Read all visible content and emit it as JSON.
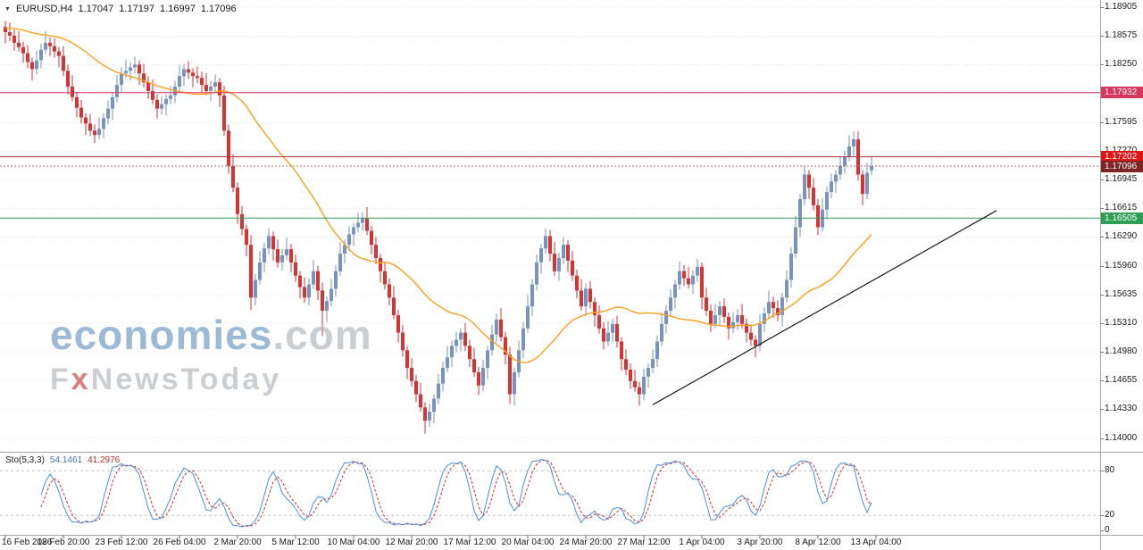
{
  "header": {
    "collapse_icon": "▼",
    "symbol": "EURUSD,H4",
    "open": "1.17047",
    "high": "1.17197",
    "low": "1.16997",
    "close": "1.17096"
  },
  "watermark": {
    "brand": "economies",
    "brand_suffix": ".com",
    "tagline_f": "F",
    "tagline_x": "x",
    "tagline_rest": "NewsToday"
  },
  "price_axis": {
    "tick_labels": [
      "1.18905",
      "1.18575",
      "1.18250",
      "1.17595",
      "1.17270",
      "1.16945",
      "1.16615",
      "1.16290",
      "1.15960",
      "1.15635",
      "1.15310",
      "1.14980",
      "1.14655",
      "1.14330",
      "1.14000"
    ],
    "badges": [
      {
        "text": "1.17932",
        "color": "#D8365D"
      },
      {
        "text": "1.17202",
        "color": "#E01616"
      },
      {
        "text": "1.16505",
        "color": "#2E9E55"
      },
      {
        "text": "1.17096",
        "color": "#7E2424"
      }
    ]
  },
  "time_axis": {
    "labels": [
      "16 Feb 2026",
      "18 Feb 20:00",
      "23 Feb 12:00",
      "26 Feb 04:00",
      "2 Mar 20:00",
      "5 Mar 12:00",
      "10 Mar 04:00",
      "12 Mar 20:00",
      "17 Mar 12:00",
      "20 Mar 04:00",
      "24 Mar 20:00",
      "27 Mar 12:00",
      "1 Apr 04:00",
      "3 Apr 20:00",
      "8 Apr 12:00",
      "13 Apr 04:00"
    ]
  },
  "stoch_panel": {
    "name": "Sto(5,3,3)",
    "main_value": "54.1461",
    "signal_value": "41.2976",
    "axis_labels": [
      "80",
      "20",
      "0"
    ],
    "colors": {
      "main": "#4A90D9",
      "signal": "#D23030",
      "levels": "#C4C4C4"
    }
  },
  "chart_data": {
    "type": "candlestick",
    "symbol": "EURUSD",
    "timeframe": "H4",
    "title": "EURUSD,H4 1.17047 1.17197 1.16997 1.17096",
    "y_range": [
      1.1386,
      1.1899
    ],
    "y_axis_ticks": [
      1.18905,
      1.18575,
      1.1825,
      1.1792,
      1.17595,
      1.1727,
      1.16945,
      1.16615,
      1.1629,
      1.1596,
      1.15635,
      1.1531,
      1.1498,
      1.14655,
      1.1433,
      1.14
    ],
    "x_axis_ticks": [
      "16 Feb 2026",
      "18 Feb 20:00",
      "23 Feb 12:00",
      "26 Feb 04:00",
      "2 Mar 20:00",
      "5 Mar 12:00",
      "10 Mar 04:00",
      "12 Mar 20:00",
      "17 Mar 12:00",
      "20 Mar 04:00",
      "24 Mar 20:00",
      "27 Mar 12:00",
      "1 Apr 04:00",
      "3 Apr 20:00",
      "8 Apr 12:00",
      "13 Apr 04:00"
    ],
    "candles": {
      "first_open": 1.1868,
      "up_color": "#7693C1",
      "down_color": "#D63333",
      "wick_pattern": [
        0.0005,
        0.0011,
        0.0007,
        0.0013,
        0.0006,
        0.0009
      ],
      "wick_overrides": {
        "0": {
          "h": 1.1875
        },
        "55": {
          "l": 1.1546
        },
        "71": {
          "l": 1.1516
        },
        "79": {
          "h": 1.1656
        },
        "94": {
          "l": 1.1405
        },
        "113": {
          "l": 1.1439
        },
        "121": {
          "h": 1.1639
        },
        "142": {
          "l": 1.1437
        },
        "190": {
          "h": 1.1749
        },
        "194": {
          "o": 1.17047,
          "h": 1.17197,
          "l": 1.16997,
          "c": 1.17096
        }
      },
      "closes": [
        1.1862,
        1.1858,
        1.185,
        1.1845,
        1.1838,
        1.1828,
        1.182,
        1.183,
        1.1842,
        1.185,
        1.1846,
        1.184,
        1.1835,
        1.1818,
        1.18,
        1.1788,
        1.1776,
        1.1765,
        1.1758,
        1.175,
        1.1745,
        1.1752,
        1.1764,
        1.1775,
        1.1788,
        1.1802,
        1.1815,
        1.1818,
        1.1822,
        1.1825,
        1.1815,
        1.1805,
        1.1795,
        1.1785,
        1.1775,
        1.178,
        1.1786,
        1.179,
        1.18,
        1.1812,
        1.182,
        1.1816,
        1.1812,
        1.181,
        1.1802,
        1.1795,
        1.18,
        1.1805,
        1.179,
        1.175,
        1.171,
        1.1685,
        1.1655,
        1.1638,
        1.162,
        1.156,
        1.158,
        1.16,
        1.1616,
        1.163,
        1.1615,
        1.16,
        1.1608,
        1.1615,
        1.16,
        1.1585,
        1.1572,
        1.156,
        1.1575,
        1.159,
        1.1568,
        1.1545,
        1.1556,
        1.157,
        1.159,
        1.161,
        1.162,
        1.1632,
        1.164,
        1.1645,
        1.165,
        1.1636,
        1.162,
        1.1605,
        1.159,
        1.1575,
        1.156,
        1.154,
        1.152,
        1.15,
        1.148,
        1.1465,
        1.145,
        1.1435,
        1.142,
        1.143,
        1.1445,
        1.1462,
        1.148,
        1.1492,
        1.1505,
        1.1512,
        1.152,
        1.1505,
        1.149,
        1.1475,
        1.146,
        1.148,
        1.15,
        1.1518,
        1.1535,
        1.1515,
        1.1495,
        1.145,
        1.1475,
        1.15,
        1.1525,
        1.155,
        1.1575,
        1.16,
        1.1616,
        1.163,
        1.161,
        1.159,
        1.1605,
        1.162,
        1.1602,
        1.1585,
        1.1568,
        1.155,
        1.157,
        1.1555,
        1.154,
        1.1525,
        1.151,
        1.152,
        1.153,
        1.151,
        1.149,
        1.1478,
        1.1465,
        1.1458,
        1.145,
        1.147,
        1.148,
        1.149,
        1.151,
        1.153,
        1.1545,
        1.156,
        1.1575,
        1.159,
        1.1582,
        1.1575,
        1.1585,
        1.1595,
        1.156,
        1.1545,
        1.153,
        1.154,
        1.155,
        1.1538,
        1.1525,
        1.1532,
        1.154,
        1.153,
        1.152,
        1.1512,
        1.1505,
        1.153,
        1.1542,
        1.1555,
        1.1548,
        1.154,
        1.156,
        1.158,
        1.161,
        1.164,
        1.1672,
        1.17,
        1.1685,
        1.1665,
        1.164,
        1.166,
        1.168,
        1.1692,
        1.17,
        1.171,
        1.172,
        1.1732,
        1.174,
        1.17,
        1.1678,
        1.1702,
        1.17096
      ]
    },
    "ma": {
      "period": 30,
      "pad": 1.1867,
      "color": "#FF9F1A"
    },
    "horizontal_lines": [
      {
        "price": 1.17932,
        "color": "#D8365D",
        "style": "solid",
        "role": "resistance-line-1"
      },
      {
        "price": 1.17202,
        "color": "#B03131",
        "style": "solid",
        "role": "resistance-line-2"
      },
      {
        "price": 1.16505,
        "color": "#2E9E55",
        "style": "solid",
        "role": "support-line"
      },
      {
        "price": 1.17096,
        "color": "#B26A6A",
        "style": "dotted",
        "role": "current-price-line"
      }
    ],
    "trendline": {
      "from_bar": 145,
      "from_price": 1.1438,
      "to_bar": 222,
      "to_price": 1.1659,
      "color": "#1A1A1A"
    },
    "stochastic": {
      "k": 5,
      "d": 3,
      "slowing": 3,
      "last_main": 54.1461,
      "last_signal": 41.2976,
      "levels": [
        80,
        20
      ],
      "range": [
        0,
        100
      ]
    }
  }
}
